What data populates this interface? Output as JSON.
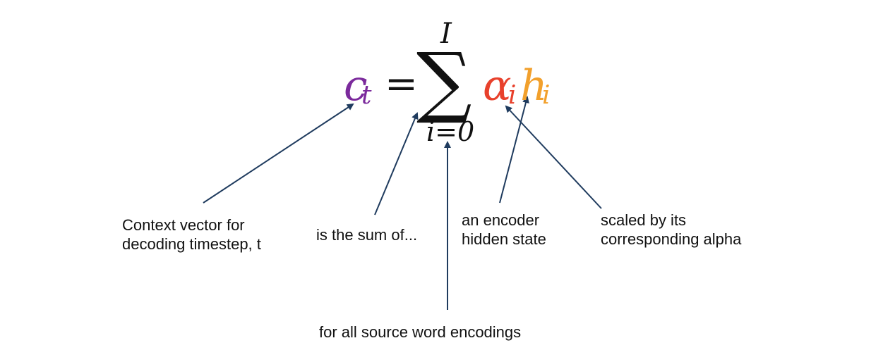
{
  "formula": {
    "lhs": "c",
    "lhs_subscript": "t",
    "equals": "=",
    "sum_symbol": "∑",
    "upper_limit": "I",
    "lower_limit": "i=0",
    "alpha": "α",
    "alpha_subscript": "i",
    "h": "h",
    "h_subscript": "i"
  },
  "annotations": {
    "context_vector": [
      "Context vector for",
      "decoding timestep,  t"
    ],
    "sum_of": "is the sum of...",
    "encoder_state": [
      "an encoder",
      "hidden state"
    ],
    "alpha_scaled": [
      "scaled by its",
      "corresponding alpha"
    ],
    "all_sources": "for all source word encodings"
  },
  "colors": {
    "c_t": "#7b2a9c",
    "alpha_i": "#e8412c",
    "h_i": "#f2a02c",
    "arrow": "#1f3b5e",
    "text": "#111111"
  }
}
